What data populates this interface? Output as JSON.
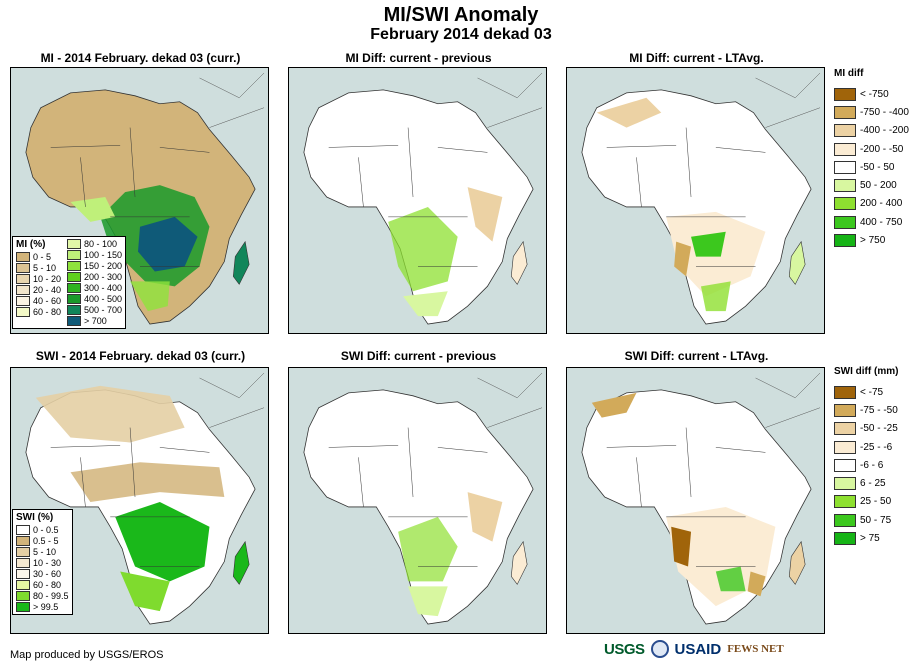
{
  "title": "MI/SWI Anomaly",
  "subtitle": "February 2014 dekad 03",
  "panels": {
    "mi_current": "MI - 2014 February. dekad 03 (curr.)",
    "mi_diff_prev": "MI Diff: current - previous",
    "mi_diff_lta": "MI Diff: current - LTAvg.",
    "swi_current": "SWI - 2014 February. dekad 03 (curr.)",
    "swi_diff_prev": "SWI Diff: current - previous",
    "swi_diff_lta": "SWI Diff: current - LTAvg."
  },
  "mi_legend": {
    "title": "MI (%)",
    "left": [
      {
        "label": "0 - 5",
        "color": "#d2b47a"
      },
      {
        "label": "5 - 10",
        "color": "#dcc494"
      },
      {
        "label": "10 - 20",
        "color": "#e8d6b0"
      },
      {
        "label": "20 - 40",
        "color": "#f2e6cc"
      },
      {
        "label": "40 - 60",
        "color": "#fbf4e4"
      },
      {
        "label": "60 - 80",
        "color": "#f4fac8"
      }
    ],
    "right": [
      {
        "label": "80 - 100",
        "color": "#e2f7a8"
      },
      {
        "label": "100 - 150",
        "color": "#bff07a"
      },
      {
        "label": "150 - 200",
        "color": "#8fe33c"
      },
      {
        "label": "200 - 300",
        "color": "#5fd01e"
      },
      {
        "label": "300 - 400",
        "color": "#2fb320"
      },
      {
        "label": "400 - 500",
        "color": "#1a9a2a"
      },
      {
        "label": "500 - 700",
        "color": "#11865a"
      },
      {
        "label": "> 700",
        "color": "#0f5a78"
      }
    ]
  },
  "swi_legend": {
    "title": "SWI (%)",
    "items": [
      {
        "label": "0 - 0.5",
        "color": "#ffffff"
      },
      {
        "label": "0.5 - 5",
        "color": "#d2b47a"
      },
      {
        "label": "5 - 10",
        "color": "#e4cfa4"
      },
      {
        "label": "10 - 30",
        "color": "#f4e8d0"
      },
      {
        "label": "30 - 60",
        "color": "#fbf6ea"
      },
      {
        "label": "60 - 80",
        "color": "#e6f7a4"
      },
      {
        "label": "80 - 99.5",
        "color": "#7fdb2e"
      },
      {
        "label": "> 99.5",
        "color": "#1ab81a"
      }
    ]
  },
  "mi_diff_legend": {
    "title": "MI diff",
    "items": [
      {
        "label": "< -750",
        "color": "#a0640a"
      },
      {
        "label": "-750 - -400",
        "color": "#d2aa5a"
      },
      {
        "label": "-400 - -200",
        "color": "#ecd2a4"
      },
      {
        "label": "-200 - -50",
        "color": "#fbecd4"
      },
      {
        "label": "-50 - 50",
        "color": "#ffffff"
      },
      {
        "label": "50 - 200",
        "color": "#d8f7a0"
      },
      {
        "label": "200 - 400",
        "color": "#8ee030"
      },
      {
        "label": "400 - 750",
        "color": "#3cc81e"
      },
      {
        "label": "> 750",
        "color": "#16b416"
      }
    ]
  },
  "swi_diff_legend": {
    "title": "SWI diff (mm)",
    "items": [
      {
        "label": "< -75",
        "color": "#a0640a"
      },
      {
        "label": "-75 - -50",
        "color": "#d2aa5a"
      },
      {
        "label": "-50 - -25",
        "color": "#ecd2a4"
      },
      {
        "label": "-25 - -6",
        "color": "#fbecd4"
      },
      {
        "label": "-6 - 6",
        "color": "#ffffff"
      },
      {
        "label": "6 - 25",
        "color": "#d8f7a0"
      },
      {
        "label": "25 - 50",
        "color": "#8ee030"
      },
      {
        "label": "50 - 75",
        "color": "#3cc81e"
      },
      {
        "label": "> 75",
        "color": "#16b416"
      }
    ]
  },
  "credit": "Map produced by USGS/EROS",
  "logos": {
    "usgs": "USGS",
    "usaid": "USAID",
    "fews": "FEWS NET"
  }
}
